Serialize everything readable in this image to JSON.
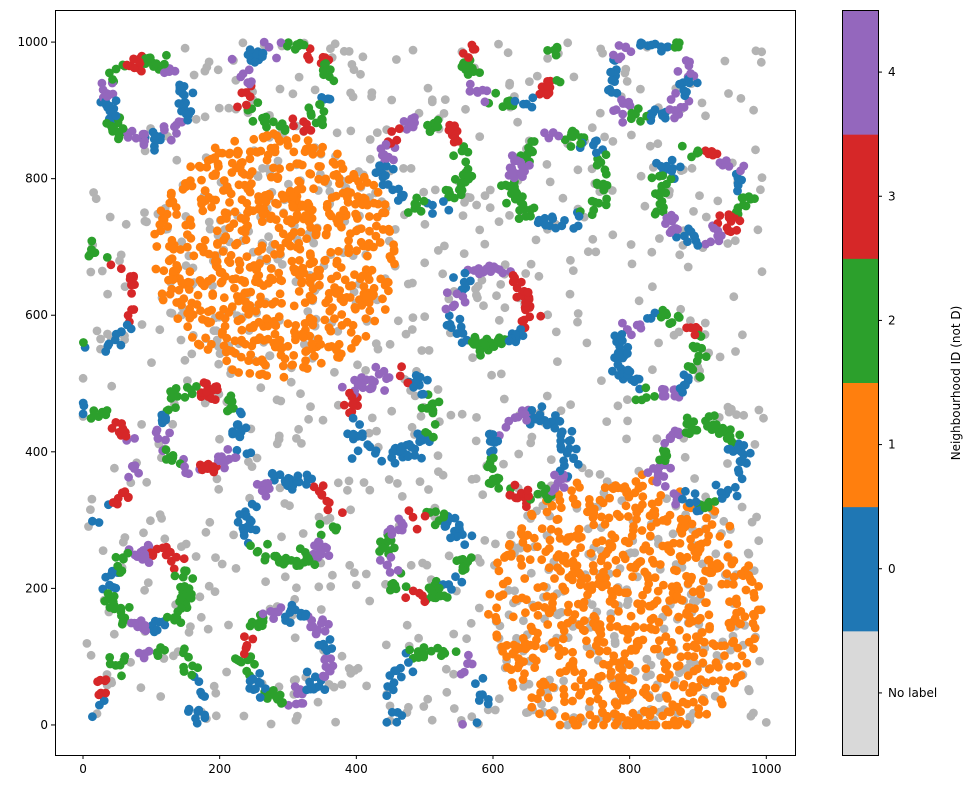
{
  "chart_data": {
    "type": "scatter",
    "title": "",
    "xlabel": "",
    "ylabel": "",
    "xlim": [
      -41,
      1042
    ],
    "ylim": [
      -44,
      1047
    ],
    "xticks": [
      0,
      200,
      400,
      600,
      800,
      1000
    ],
    "yticks": [
      0,
      200,
      400,
      600,
      800,
      1000
    ],
    "grid": false,
    "colorbar": {
      "label": "Neighbourhood ID (not D)",
      "categories": [
        {
          "label": "No label",
          "color": "#d9d9d9",
          "point_color": "#b3b3b3"
        },
        {
          "label": "0",
          "color": "#1f77b4"
        },
        {
          "label": "1",
          "color": "#ff7f0e"
        },
        {
          "label": "2",
          "color": "#2ca02c"
        },
        {
          "label": "3",
          "color": "#d62728"
        },
        {
          "label": "4",
          "color": "#9467bd"
        }
      ]
    },
    "background_noise": {
      "label": "No label",
      "count": 750,
      "x_range": [
        0,
        1000
      ],
      "y_range": [
        0,
        1000
      ]
    },
    "blobs": [
      {
        "label": "1",
        "center": [
          281,
          688
        ],
        "radius": 180,
        "count": 750,
        "unlabelled_fraction": 0.12
      },
      {
        "label": "1",
        "center": [
          793,
          168
        ],
        "radius": 200,
        "count": 800,
        "unlabelled_fraction": 0.15
      }
    ],
    "rings": [
      {
        "center": [
          91,
          915
        ],
        "radius": 58,
        "count": 110,
        "arc_labels": [
          0,
          4,
          2,
          3,
          2,
          4,
          0,
          2,
          4,
          0,
          4,
          0
        ]
      },
      {
        "center": [
          299,
          937
        ],
        "radius": 63,
        "count": 100,
        "arc_labels": [
          2,
          3,
          2,
          4,
          0,
          4,
          3,
          2,
          2,
          3,
          2,
          0
        ]
      },
      {
        "center": [
          630,
          975
        ],
        "radius": 66,
        "count": 90,
        "arc_labels": [
          2,
          3,
          4,
          2,
          0,
          3,
          2,
          4,
          2,
          0,
          3,
          2
        ]
      },
      {
        "center": [
          830,
          947
        ],
        "radius": 56,
        "count": 95,
        "arc_labels": [
          4,
          2,
          0,
          0,
          4,
          0,
          0,
          4,
          2,
          0,
          4,
          0
        ]
      },
      {
        "center": [
          501,
          820
        ],
        "radius": 62,
        "count": 95,
        "arc_labels": [
          2,
          3,
          2,
          4,
          3,
          4,
          0,
          0,
          2,
          0,
          2,
          2
        ]
      },
      {
        "center": [
          698,
          798
        ],
        "radius": 66,
        "count": 110,
        "arc_labels": [
          2,
          0,
          2,
          4,
          2,
          4,
          2,
          2,
          0,
          0,
          2,
          2
        ]
      },
      {
        "center": [
          903,
          776
        ],
        "radius": 62,
        "count": 105,
        "arc_labels": [
          0,
          4,
          3,
          2,
          0,
          2,
          2,
          4,
          0,
          4,
          3,
          2
        ]
      },
      {
        "center": [
          595,
          608
        ],
        "radius": 56,
        "count": 95,
        "arc_labels": [
          3,
          3,
          4,
          4,
          0,
          4,
          0,
          0,
          2,
          2,
          0,
          3
        ]
      },
      {
        "center": [
          845,
          542
        ],
        "radius": 59,
        "count": 95,
        "arc_labels": [
          2,
          3,
          2,
          0,
          4,
          0,
          0,
          0,
          2,
          4,
          0,
          2
        ]
      },
      {
        "center": [
          171,
          432
        ],
        "radius": 59,
        "count": 100,
        "arc_labels": [
          0,
          2,
          3,
          2,
          2,
          0,
          4,
          2,
          4,
          3,
          4,
          0
        ]
      },
      {
        "center": [
          449,
          454
        ],
        "radius": 59,
        "count": 100,
        "arc_labels": [
          2,
          0,
          3,
          4,
          4,
          3,
          0,
          0,
          0,
          0,
          0,
          2
        ]
      },
      {
        "center": [
          654,
          395
        ],
        "radius": 59,
        "count": 100,
        "arc_labels": [
          0,
          0,
          0,
          4,
          4,
          0,
          2,
          2,
          3,
          2,
          4,
          0
        ]
      },
      {
        "center": [
          903,
          381
        ],
        "radius": 59,
        "count": 100,
        "arc_labels": [
          0,
          2,
          2,
          2,
          4,
          2,
          4,
          4,
          0,
          2,
          0,
          0
        ]
      },
      {
        "center": [
          303,
          300
        ],
        "radius": 62,
        "count": 100,
        "arc_labels": [
          3,
          3,
          0,
          0,
          4,
          0,
          0,
          2,
          2,
          2,
          4,
          2
        ]
      },
      {
        "center": [
          501,
          249
        ],
        "radius": 59,
        "count": 95,
        "arc_labels": [
          0,
          0,
          2,
          3,
          4,
          2,
          4,
          2,
          3,
          2,
          0,
          2
        ]
      },
      {
        "center": [
          98,
          198
        ],
        "radius": 56,
        "count": 100,
        "arc_labels": [
          2,
          3,
          3,
          4,
          2,
          0,
          2,
          2,
          4,
          0,
          2,
          2
        ]
      },
      {
        "center": [
          296,
          102
        ],
        "radius": 62,
        "count": 110,
        "arc_labels": [
          0,
          4,
          0,
          4,
          2,
          3,
          2,
          0,
          2,
          4,
          0,
          4
        ]
      },
      {
        "center": [
          98,
          37
        ],
        "radius": 73,
        "count": 70,
        "arc_labels": [
          0,
          2,
          2,
          4,
          2,
          3,
          0,
          4,
          0,
          0,
          0,
          0
        ]
      },
      {
        "center": [
          518,
          37
        ],
        "radius": 69,
        "count": 60,
        "arc_labels": [
          0,
          4,
          2,
          2,
          0,
          0,
          0,
          0,
          4,
          0,
          4,
          0
        ]
      },
      {
        "center": [
          3,
          622
        ],
        "radius": 73,
        "count": 70,
        "arc_labels": [
          3,
          3,
          2,
          0,
          0,
          0,
          2,
          2,
          2,
          0,
          0,
          3
        ]
      },
      {
        "center": [
          3,
          388
        ],
        "radius": 73,
        "count": 70,
        "arc_labels": [
          4,
          3,
          2,
          0,
          0,
          4,
          4,
          0,
          2,
          0,
          3,
          4
        ]
      }
    ]
  }
}
